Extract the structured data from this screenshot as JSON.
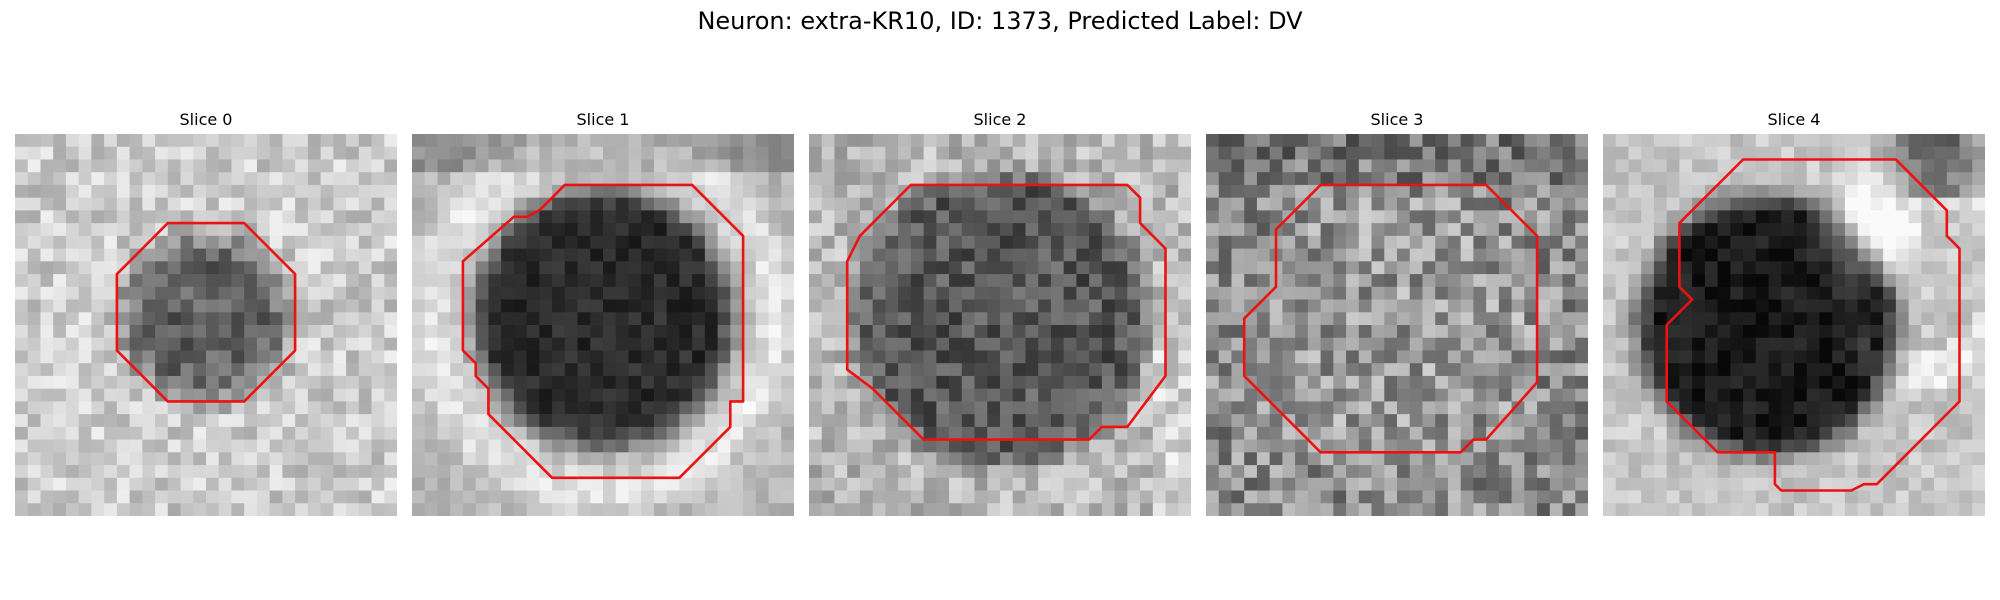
{
  "figure": {
    "title": "Neuron: extra-KR10, ID: 1373, Predicted Label: DV",
    "contour_color": "#ee1111"
  },
  "panels": [
    {
      "title": "Slice 0"
    },
    {
      "title": "Slice 1"
    },
    {
      "title": "Slice 2"
    },
    {
      "title": "Slice 3"
    },
    {
      "title": "Slice 4"
    }
  ]
}
